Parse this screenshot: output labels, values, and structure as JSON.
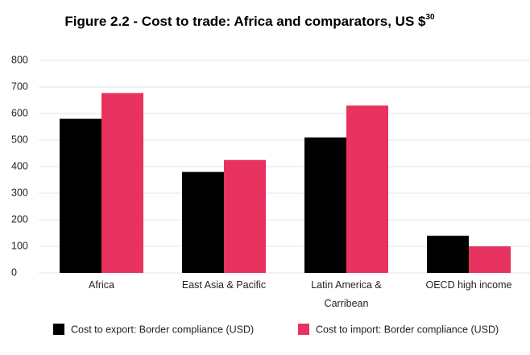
{
  "chart_data": {
    "type": "bar",
    "title": "Figure 2.2 - Cost to trade: Africa and comparators, US $",
    "title_superscript": "30",
    "categories": [
      "Africa",
      "East Asia & Pacific",
      "Latin America & Carribean",
      "OECD high income"
    ],
    "series": [
      {
        "name": "Cost to export: Border compliance (USD)",
        "color": "#000000",
        "values": [
          580,
          380,
          510,
          140
        ]
      },
      {
        "name": "Cost to import: Border compliance (USD)",
        "color": "#e8325f",
        "values": [
          677,
          425,
          630,
          100
        ]
      }
    ],
    "ylim": [
      0,
      800
    ],
    "yticks": [
      0,
      100,
      200,
      300,
      400,
      500,
      600,
      700,
      800
    ],
    "grid": true,
    "legend": "bottom"
  }
}
